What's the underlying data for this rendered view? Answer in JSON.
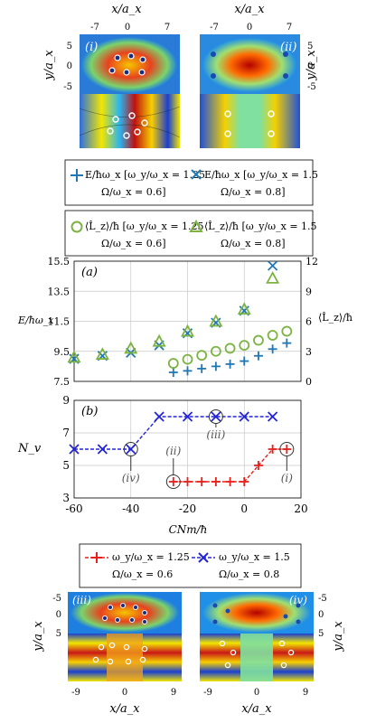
{
  "colors": {
    "blue": "#1f77b4",
    "green": "#7cb342",
    "red": "#e8201c",
    "navy": "#2323d8",
    "grid": "#c8c8c8"
  },
  "top_panels": {
    "xlabel": "x/a_x",
    "ylabel": "y/a_x",
    "xticks": [
      "-7",
      "0",
      "7"
    ],
    "yticks": [
      "0",
      "5",
      "-5"
    ],
    "panel_i": "(i)",
    "panel_ii": "(ii)"
  },
  "legend_top": {
    "row1": [
      {
        "line1": "E/ħω_x [ω_y/ω_x = 1.25",
        "line2": "Ω/ω_x = 0.6]",
        "marker": "plus",
        "color": "#1f77b4"
      },
      {
        "line1": "E/ħω_x [ω_y/ω_x = 1.5",
        "line2": "Ω/ω_x = 0.8]",
        "marker": "cross",
        "color": "#1f77b4"
      }
    ],
    "row2": [
      {
        "line1": "⟨L̂_z⟩/ħ [ω_y/ω_x = 1.25",
        "line2": "Ω/ω_x = 0.6]",
        "marker": "circle",
        "color": "#7cb342"
      },
      {
        "line1": "⟨L̂_z⟩/ħ [ω_y/ω_x = 1.5",
        "line2": "Ω/ω_x = 0.8]",
        "marker": "triangle",
        "color": "#7cb342"
      }
    ]
  },
  "chart_data": [
    {
      "type": "scatter",
      "panel": "(a)",
      "ylabel": "E/ħω_x",
      "y2label": "⟨L̂_z⟩/ħ",
      "xlim": [
        -60,
        20
      ],
      "ylim": [
        7.5,
        15.5
      ],
      "y2lim": [
        0,
        12
      ],
      "yticks": [
        7.5,
        9.5,
        11.5,
        13.5,
        15.5
      ],
      "y2ticks": [
        0,
        3,
        6,
        9,
        12
      ],
      "grid": true,
      "series": [
        {
          "name": "E/ħω_x [ω_y/ω_x = 1.25 Ω/ω_x = 0.6]",
          "axis": "left",
          "marker": "plus",
          "x": [
            -25,
            -20,
            -15,
            -10,
            -5,
            0,
            5,
            10,
            15
          ],
          "y": [
            8.1,
            8.2,
            8.35,
            8.5,
            8.65,
            8.85,
            9.2,
            9.65,
            10.05
          ]
        },
        {
          "name": "E/ħω_x [ω_y/ω_x = 1.5 Ω/ω_x = 0.8]",
          "axis": "left",
          "marker": "cross",
          "x": [
            -60,
            -50,
            -40,
            -30,
            -20,
            -10,
            0,
            10
          ],
          "y": [
            9.0,
            9.2,
            9.4,
            9.9,
            10.7,
            11.4,
            12.2,
            15.2
          ]
        },
        {
          "name": "⟨L̂_z⟩/ħ [ω_y/ω_x = 1.25 Ω/ω_x = 0.6]",
          "axis": "right",
          "marker": "circle",
          "x": [
            -25,
            -20,
            -15,
            -10,
            -5,
            0,
            5,
            10,
            15
          ],
          "y": [
            1.8,
            2.2,
            2.6,
            3.0,
            3.3,
            3.6,
            4.1,
            4.6,
            5.0
          ]
        },
        {
          "name": "⟨L̂_z⟩/ħ [ω_y/ω_x = 1.5 Ω/ω_x = 0.8]",
          "axis": "right",
          "marker": "triangle",
          "x": [
            -60,
            -50,
            -40,
            -30,
            -20,
            -10,
            0,
            10
          ],
          "y": [
            2.4,
            2.7,
            3.3,
            4.0,
            5.0,
            6.0,
            7.2,
            10.3
          ]
        }
      ]
    },
    {
      "type": "line",
      "panel": "(b)",
      "ylabel": "N_v",
      "xlabel": "CNm/ħ",
      "xlim": [
        -60,
        20
      ],
      "ylim": [
        3,
        9
      ],
      "xticks": [
        -60,
        -40,
        -20,
        0,
        20
      ],
      "yticks": [
        3,
        5,
        7,
        9
      ],
      "grid": true,
      "series": [
        {
          "name": "ω_y/ω_x = 1.25 Ω/ω_x = 0.6",
          "marker": "plus",
          "color": "#e8201c",
          "x": [
            -25,
            -20,
            -15,
            -10,
            -5,
            0,
            5,
            10,
            15
          ],
          "y": [
            4,
            4,
            4,
            4,
            4,
            4,
            5,
            6,
            6
          ]
        },
        {
          "name": "ω_y/ω_x = 1.5 Ω/ω_x = 0.8",
          "marker": "cross",
          "color": "#2323d8",
          "x": [
            -60,
            -50,
            -40,
            -30,
            -20,
            -10,
            0,
            10
          ],
          "y": [
            6,
            6,
            6,
            8,
            8,
            8,
            8,
            8
          ]
        }
      ],
      "annotations": [
        {
          "label": "(ii)",
          "x": -25,
          "y": 4
        },
        {
          "label": "(iii)",
          "x": -10,
          "y": 8
        },
        {
          "label": "(iv)",
          "x": -40,
          "y": 6
        },
        {
          "label": "(i)",
          "x": 15,
          "y": 6
        }
      ]
    }
  ],
  "legend_bottom": [
    {
      "line1": "ω_y/ω_x = 1.25",
      "line2": "Ω/ω_x = 0.6",
      "marker": "plus",
      "color": "#e8201c"
    },
    {
      "line1": "ω_y/ω_x = 1.5",
      "line2": "Ω/ω_x = 0.8",
      "marker": "cross",
      "color": "#2323d8"
    }
  ],
  "bottom_panels": {
    "xlabel": "x/a_x",
    "ylabel": "y/a_x",
    "xticks": [
      "-9",
      "0",
      "9"
    ],
    "yticks": [
      "-5",
      "0",
      "5"
    ],
    "panel_iii": "(iii)",
    "panel_iv": "(iv)"
  }
}
